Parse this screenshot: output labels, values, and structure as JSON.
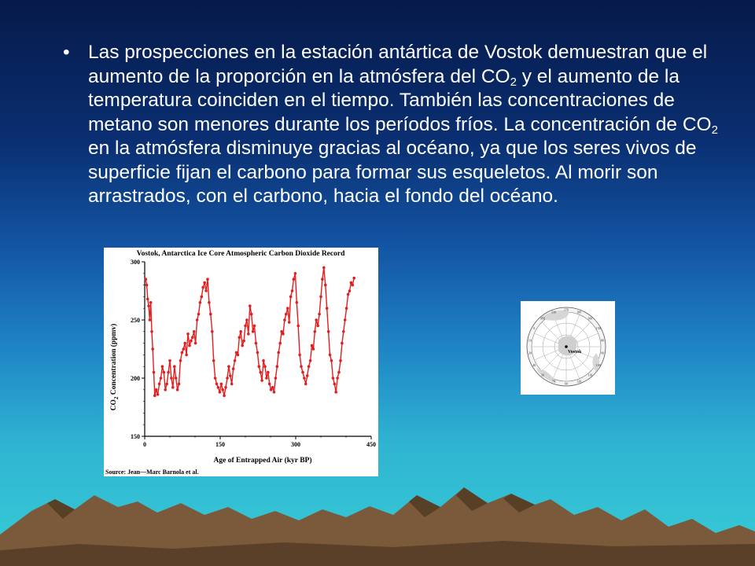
{
  "slide": {
    "bullet_symbol": "•",
    "text_parts": [
      "Las prospecciones en la estación antártica de Vostok demuestran que el aumento de la proporción en la atmósfera del CO",
      "2",
      " y el aumento de la temperatura coinciden en el tiempo. También las concentraciones de metano son menores durante los períodos fríos. La concentración de CO",
      "2",
      " en la atmósfera disminuye gracias al océano, ya que los seres vivos de superficie fijan el carbono para formar sus esqueletos. Al morir son arrastrados, con el carbono, hacia el fondo del océano."
    ]
  },
  "chart_data": {
    "type": "line",
    "title": "Vostok, Antarctica Ice Core Atmospheric Carbon Dioxide Record",
    "xlabel": "Age of Entrapped Air (kyr BP)",
    "ylabel_main": "CO",
    "ylabel_sub": "2",
    "ylabel_rest": " Concentration (ppmv)",
    "source": "Source: Jean—Marc Barnola et al.",
    "xlim": [
      0,
      450
    ],
    "ylim": [
      150,
      300
    ],
    "xticks": [
      0,
      150,
      300,
      450
    ],
    "yticks": [
      150,
      200,
      250,
      300
    ],
    "grid": false,
    "color": "#e41e1e",
    "series": [
      {
        "x": [
          2,
          4,
          6,
          8,
          10,
          12,
          14,
          16,
          18,
          20,
          23,
          26,
          29,
          32,
          35,
          38,
          41,
          44,
          47,
          50,
          53,
          56,
          59,
          62,
          65,
          68,
          71,
          74,
          77,
          80,
          83,
          86,
          89,
          92,
          95,
          98,
          101,
          104,
          107,
          110,
          113,
          116,
          119,
          122,
          125,
          128,
          131,
          134,
          137,
          140,
          143,
          146,
          149,
          152,
          155,
          158,
          161,
          164,
          167,
          170,
          173,
          176,
          179,
          182,
          185,
          188,
          191,
          194,
          197,
          200,
          203,
          206,
          209,
          212,
          215,
          218,
          221,
          224,
          227,
          230,
          233,
          236,
          239,
          242,
          245,
          248,
          251,
          254,
          257,
          260,
          263,
          266,
          269,
          272,
          275,
          278,
          281,
          284,
          287,
          290,
          293,
          296,
          299,
          302,
          305,
          308,
          311,
          314,
          317,
          320,
          323,
          326,
          329,
          332,
          335,
          338,
          341,
          344,
          347,
          350,
          353,
          356,
          359,
          362,
          365,
          368,
          371,
          374,
          377,
          380,
          383,
          386,
          389,
          392,
          395,
          398,
          401,
          404,
          407,
          410,
          413,
          416
        ],
        "y": [
          285,
          280,
          268,
          262,
          250,
          265,
          240,
          225,
          205,
          185,
          190,
          186,
          195,
          200,
          210,
          205,
          190,
          195,
          205,
          215,
          200,
          192,
          210,
          200,
          190,
          195,
          215,
          222,
          225,
          230,
          220,
          238,
          228,
          232,
          235,
          240,
          230,
          250,
          255,
          265,
          270,
          278,
          282,
          275,
          285,
          265,
          255,
          240,
          215,
          200,
          195,
          192,
          188,
          195,
          190,
          185,
          192,
          200,
          210,
          202,
          195,
          208,
          215,
          222,
          220,
          235,
          240,
          228,
          232,
          245,
          250,
          238,
          262,
          255,
          240,
          245,
          230,
          222,
          210,
          205,
          198,
          215,
          210,
          200,
          205,
          195,
          190,
          192,
          188,
          200,
          210,
          222,
          230,
          240,
          238,
          250,
          255,
          260,
          248,
          270,
          275,
          285,
          290,
          265,
          245,
          220,
          210,
          205,
          200,
          195,
          202,
          210,
          215,
          228,
          225,
          240,
          250,
          245,
          255,
          270,
          285,
          295,
          280,
          260,
          240,
          220,
          215,
          200,
          195,
          188,
          200,
          205,
          215,
          230,
          240,
          250,
          260,
          272,
          275,
          282,
          280,
          286
        ]
      }
    ]
  },
  "map": {
    "label": "Vostok",
    "degree_labels": [
      "170",
      "180",
      "160",
      "150",
      "80",
      "90",
      "100",
      "110",
      "120",
      "60",
      "70",
      "30",
      "40",
      "20",
      "10",
      "0",
      "350",
      "330"
    ]
  }
}
